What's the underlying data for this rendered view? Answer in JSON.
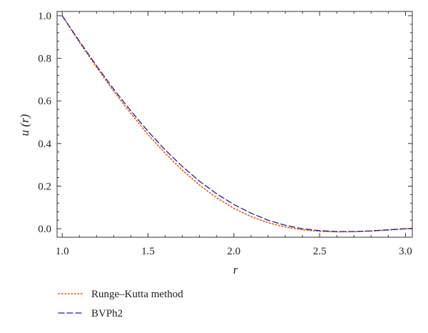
{
  "chart_data": {
    "type": "line",
    "title": "",
    "xlabel": "r",
    "ylabel": "u (r)",
    "xlim": [
      0.97,
      3.04
    ],
    "ylim": [
      -0.04,
      1.02
    ],
    "xticks": [
      1.0,
      1.5,
      2.0,
      2.5,
      3.0
    ],
    "xtick_labels": [
      "1.0",
      "1.5",
      "2.0",
      "2.5",
      "3.0"
    ],
    "yticks": [
      0.0,
      0.2,
      0.4,
      0.6,
      0.8,
      1.0
    ],
    "ytick_labels": [
      "0.0",
      "0.2",
      "0.4",
      "0.6",
      "0.8",
      "1.0"
    ],
    "grid": false,
    "legend_position": "bottom-left",
    "series": [
      {
        "name": "Runge–Kutta method",
        "style": "dotted",
        "color": "#e8541c",
        "x": [
          1.0,
          1.1,
          1.2,
          1.3,
          1.4,
          1.5,
          1.6,
          1.7,
          1.8,
          1.9,
          2.0,
          2.1,
          2.2,
          2.3,
          2.4,
          2.5,
          2.6,
          2.7,
          2.8,
          2.9,
          3.0,
          3.04
        ],
        "y": [
          1.0,
          0.875,
          0.758,
          0.645,
          0.541,
          0.442,
          0.354,
          0.275,
          0.205,
          0.145,
          0.096,
          0.057,
          0.028,
          0.008,
          -0.005,
          -0.012,
          -0.015,
          -0.014,
          -0.011,
          -0.006,
          0.0,
          0.002
        ]
      },
      {
        "name": "BVPh2",
        "style": "dashed",
        "color": "#23238e",
        "x": [
          1.0,
          1.1,
          1.2,
          1.3,
          1.4,
          1.5,
          1.6,
          1.7,
          1.8,
          1.9,
          2.0,
          2.1,
          2.2,
          2.3,
          2.4,
          2.5,
          2.6,
          2.7,
          2.8,
          2.9,
          3.0,
          3.04
        ],
        "y": [
          1.0,
          0.88,
          0.765,
          0.655,
          0.553,
          0.457,
          0.37,
          0.292,
          0.223,
          0.164,
          0.114,
          0.073,
          0.04,
          0.016,
          0.0,
          -0.009,
          -0.013,
          -0.013,
          -0.01,
          -0.005,
          0.0,
          0.002
        ]
      }
    ]
  }
}
